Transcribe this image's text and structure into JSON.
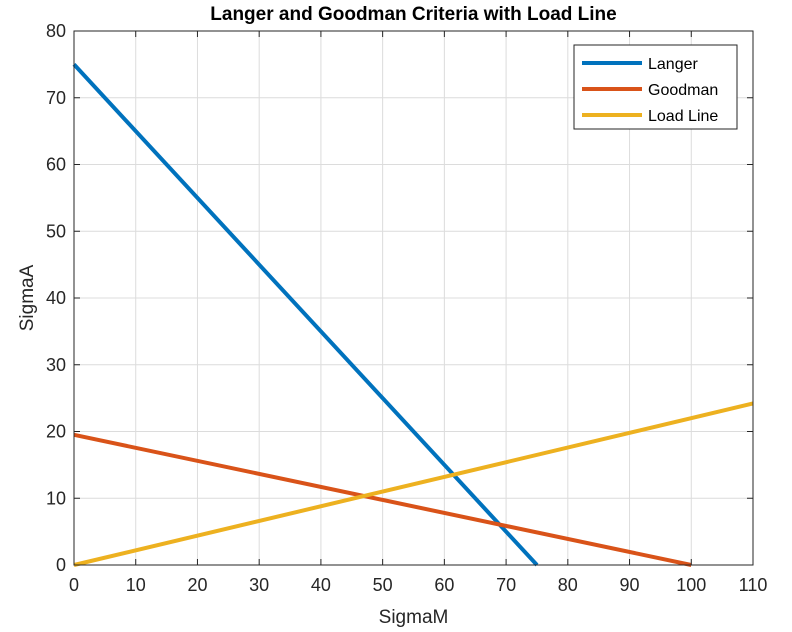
{
  "chart_data": {
    "type": "line",
    "title": "Langer and Goodman Criteria with Load Line",
    "xlabel": "SigmaM",
    "ylabel": "SigmaA",
    "xlim": [
      0,
      110
    ],
    "ylim": [
      0,
      80
    ],
    "xticks": [
      0,
      10,
      20,
      30,
      40,
      50,
      60,
      70,
      80,
      90,
      100,
      110
    ],
    "yticks": [
      0,
      10,
      20,
      30,
      40,
      50,
      60,
      70,
      80
    ],
    "grid": true,
    "legend_position": "top-right",
    "series": [
      {
        "name": "Langer",
        "color": "#0072bd",
        "x": [
          0,
          75
        ],
        "y": [
          75,
          0
        ]
      },
      {
        "name": "Goodman",
        "color": "#d95319",
        "x": [
          0,
          100
        ],
        "y": [
          19.5,
          0
        ]
      },
      {
        "name": "Load Line",
        "color": "#edb120",
        "x": [
          0,
          110
        ],
        "y": [
          0,
          24.2
        ]
      }
    ]
  }
}
